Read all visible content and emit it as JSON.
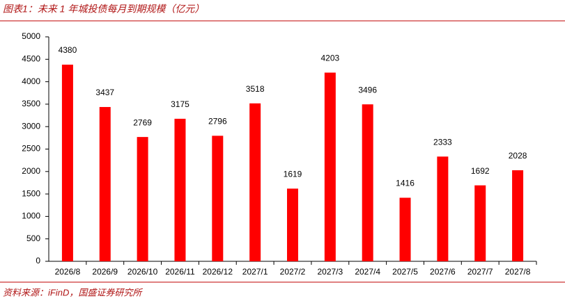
{
  "chart_data": {
    "type": "bar",
    "title": "图表1：未来 1 年城投债每月到期规模（亿元）",
    "categories": [
      "2026/8",
      "2026/9",
      "2026/10",
      "2026/11",
      "2026/12",
      "2027/1",
      "2027/2",
      "2027/3",
      "2027/4",
      "2027/5",
      "2027/6",
      "2027/7",
      "2027/8"
    ],
    "values": [
      4380,
      3437,
      2769,
      3175,
      2796,
      3518,
      1619,
      4203,
      3496,
      1416,
      2333,
      1692,
      2028
    ],
    "color": "#ff0000",
    "ylim": [
      0,
      5000
    ],
    "yticks": [
      0,
      500,
      1000,
      1500,
      2000,
      2500,
      3000,
      3500,
      4000,
      4500,
      5000
    ],
    "grid": false,
    "source": "资料来源：iFinD，国盛证券研究所"
  }
}
